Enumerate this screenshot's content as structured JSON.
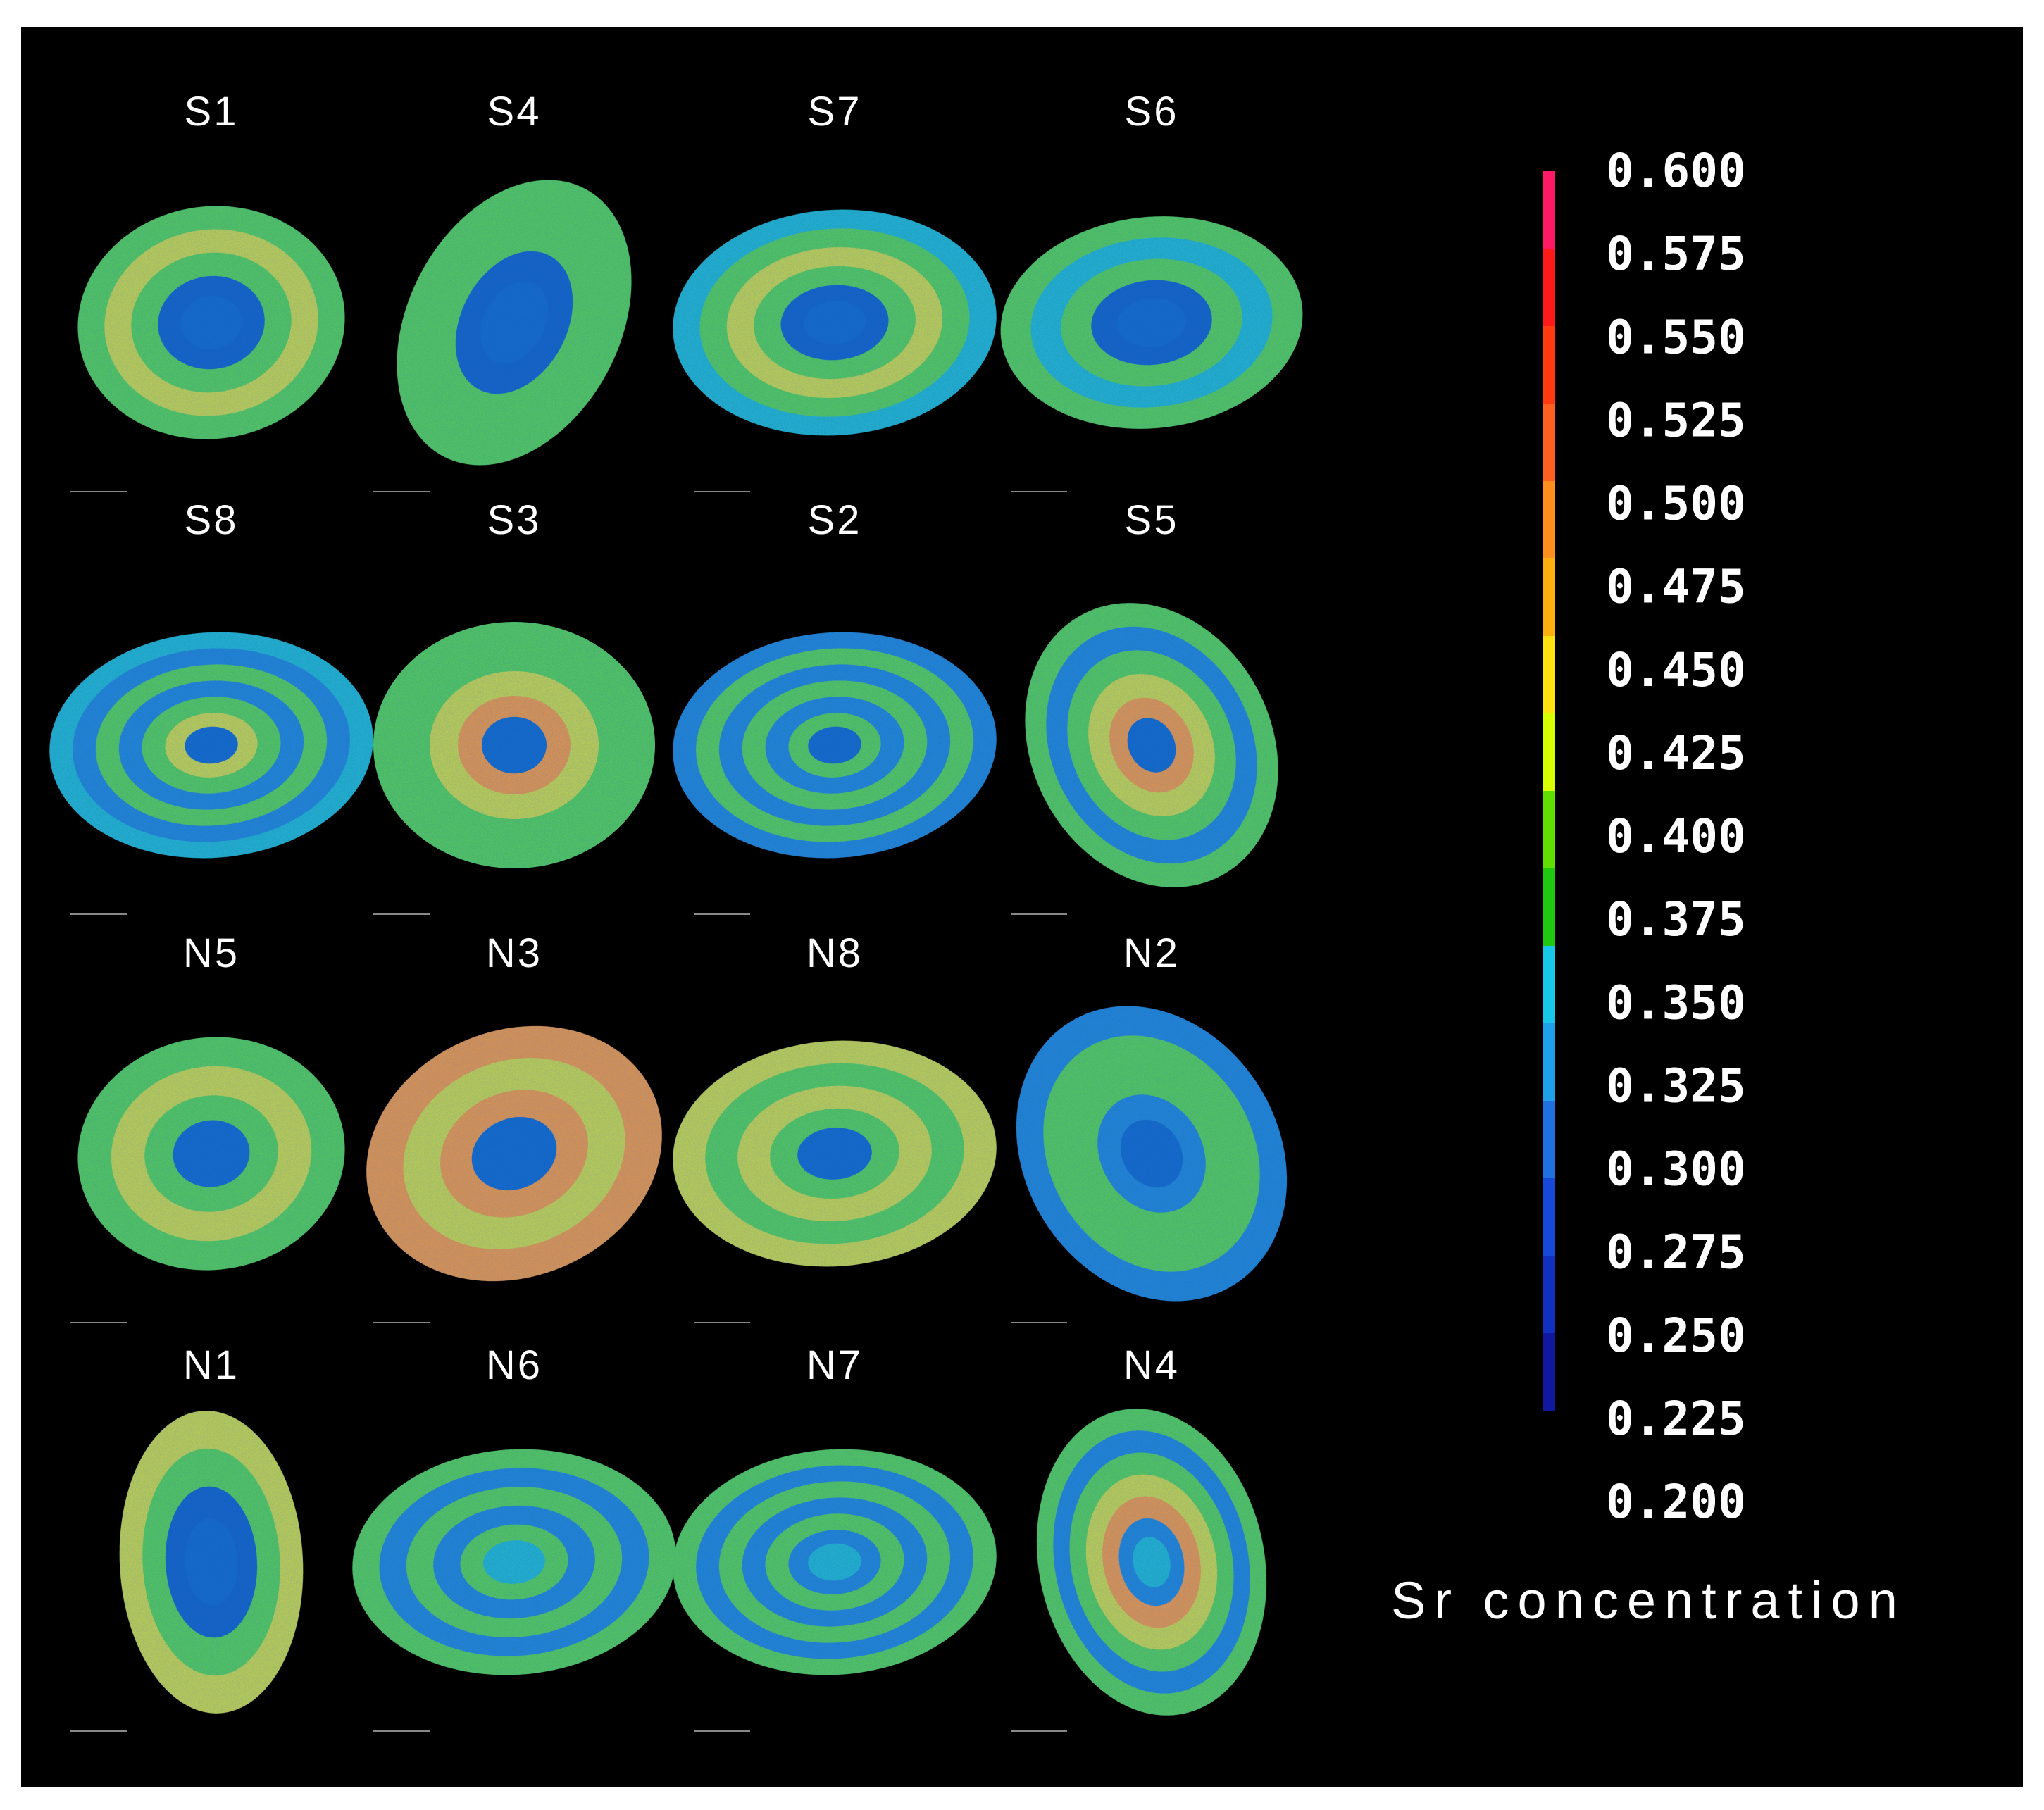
{
  "figure": {
    "samples": [
      {
        "label": "S1",
        "shape": "heart-left",
        "core": "blue",
        "rings": [
          "blue-dark",
          "green",
          "yellow",
          "green"
        ]
      },
      {
        "label": "S4",
        "shape": "tall-tilt",
        "core": "blue",
        "rings": [
          "blue-dark",
          "green",
          "green"
        ]
      },
      {
        "label": "S7",
        "shape": "wide",
        "core": "blue",
        "rings": [
          "blue-dark",
          "green",
          "yellow",
          "green",
          "cyan"
        ]
      },
      {
        "label": "S6",
        "shape": "wide-notch",
        "core": "blue",
        "rings": [
          "blue-dark",
          "green",
          "cyan",
          "green"
        ]
      },
      {
        "label": "S8",
        "shape": "wide",
        "core": "blue",
        "rings": [
          "yellow",
          "green",
          "blue",
          "green",
          "blue",
          "cyan"
        ]
      },
      {
        "label": "S3",
        "shape": "round",
        "core": "blue",
        "rings": [
          "orange",
          "yellow",
          "green",
          "green"
        ]
      },
      {
        "label": "S2",
        "shape": "wide",
        "core": "blue",
        "rings": [
          "green",
          "blue",
          "green",
          "blue",
          "green",
          "blue"
        ]
      },
      {
        "label": "S5",
        "shape": "kite",
        "core": "blue",
        "rings": [
          "orange",
          "yellow",
          "green",
          "blue",
          "green"
        ]
      },
      {
        "label": "N5",
        "shape": "heart-left",
        "core": "blue",
        "rings": [
          "green",
          "yellow",
          "green"
        ]
      },
      {
        "label": "N3",
        "shape": "tilted",
        "core": "blue",
        "rings": [
          "orange",
          "yellow",
          "orange"
        ]
      },
      {
        "label": "N8",
        "shape": "wide",
        "core": "blue",
        "rings": [
          "green",
          "yellow",
          "green",
          "yellow"
        ]
      },
      {
        "label": "N2",
        "shape": "kite-tilt",
        "core": "blue",
        "rings": [
          "blue",
          "green",
          "green",
          "blue"
        ]
      },
      {
        "label": "N1",
        "shape": "heart-tall",
        "core": "blue",
        "rings": [
          "blue-dark",
          "green",
          "yellow"
        ]
      },
      {
        "label": "N6",
        "shape": "wide",
        "core": "cyan",
        "rings": [
          "green",
          "blue",
          "green",
          "blue",
          "green"
        ]
      },
      {
        "label": "N7",
        "shape": "wide",
        "core": "cyan",
        "rings": [
          "blue",
          "green",
          "blue",
          "green",
          "blue",
          "green"
        ]
      },
      {
        "label": "N4",
        "shape": "tall",
        "core": "cyan",
        "rings": [
          "blue",
          "orange",
          "yellow",
          "green",
          "blue",
          "green"
        ]
      }
    ],
    "colorbar": {
      "ticks": [
        "0.600",
        "0.575",
        "0.550",
        "0.525",
        "0.500",
        "0.475",
        "0.450",
        "0.425",
        "0.400",
        "0.375",
        "0.350",
        "0.325",
        "0.300",
        "0.275",
        "0.250",
        "0.225",
        "0.200"
      ],
      "colors": [
        "#ff1a66",
        "#ff1a1a",
        "#ff3a10",
        "#ff6020",
        "#ff9020",
        "#ffb010",
        "#ffe010",
        "#d8ff00",
        "#60e000",
        "#20c810",
        "#18c8e8",
        "#20a0e8",
        "#2070e0",
        "#1848d8",
        "#1030c0",
        "#1018a0"
      ],
      "title": "Sr concentration"
    }
  },
  "palette": {
    "blue-dark": "#1e5fd0",
    "blue": "#2a86e0",
    "cyan": "#2cb8d8",
    "green": "#5ccf4a",
    "yellow": "#c8d832",
    "orange": "#e89a2a",
    "core-blue": "#1f66d4"
  }
}
